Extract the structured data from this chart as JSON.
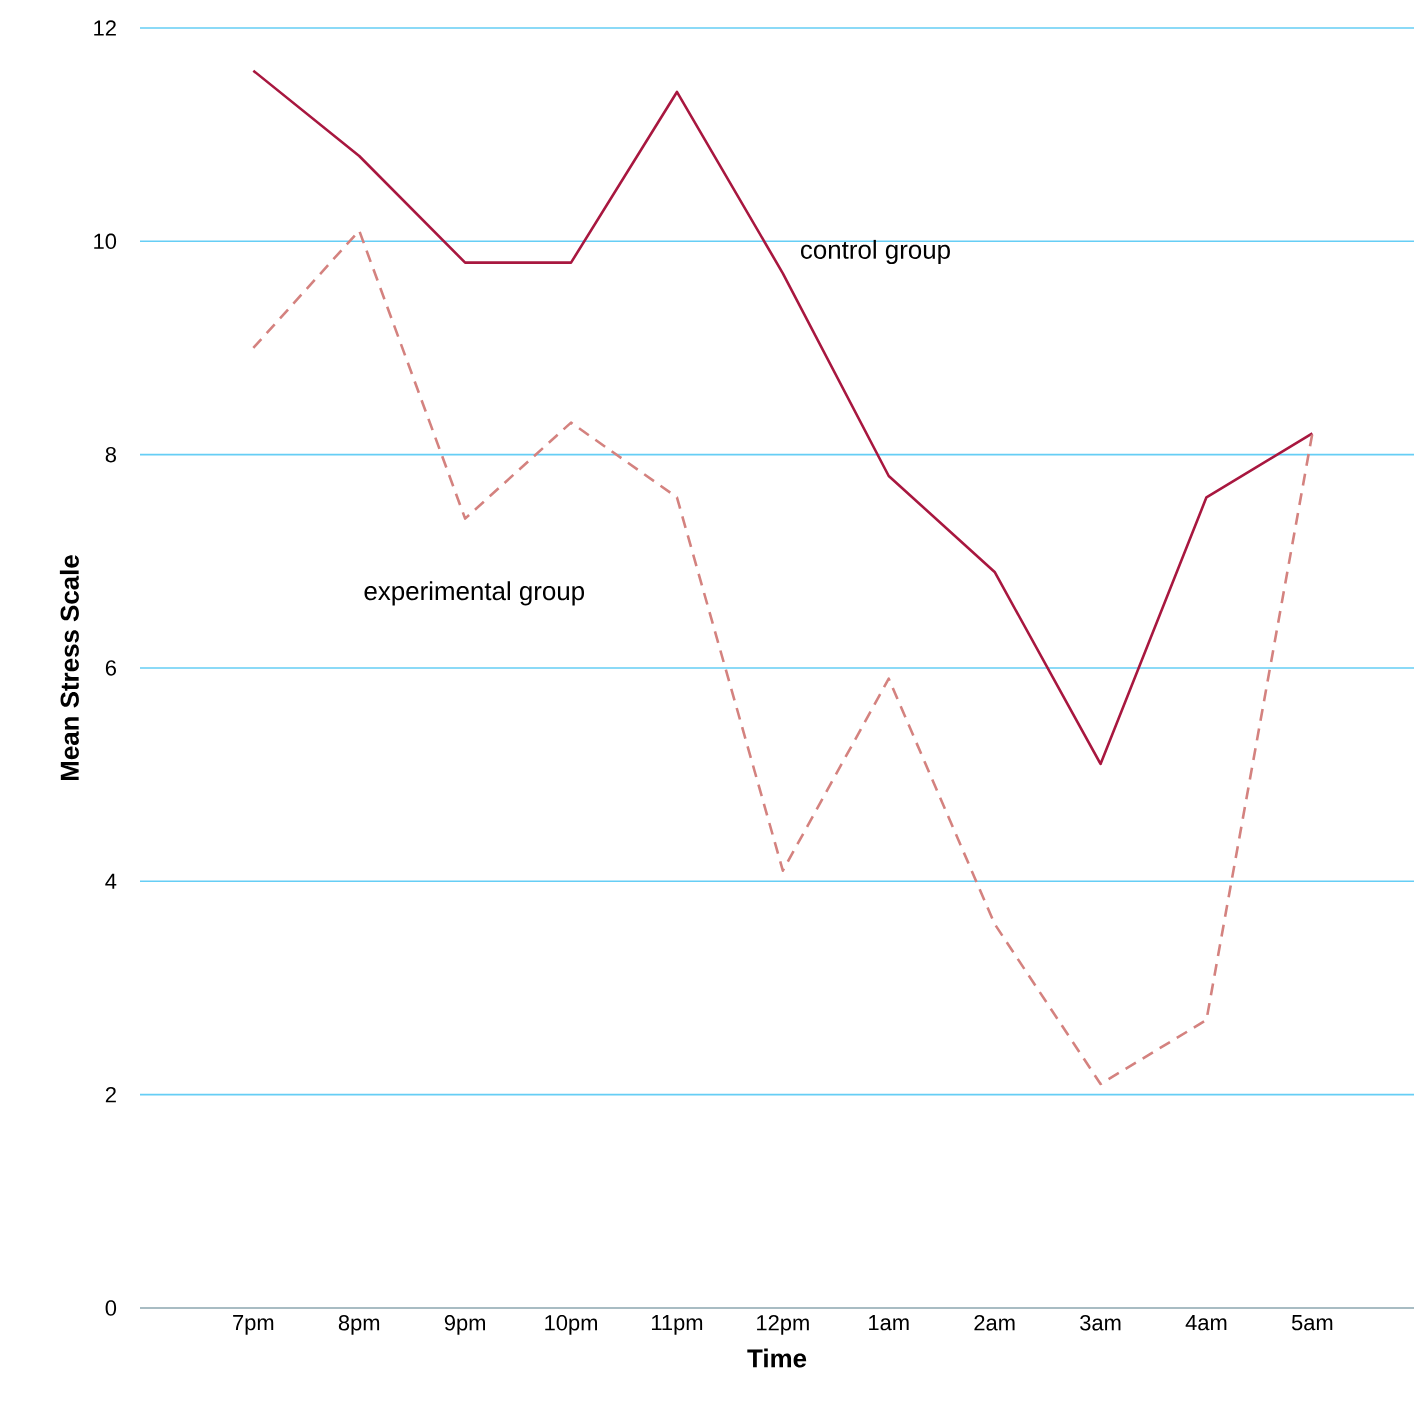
{
  "chart_data": {
    "type": "line",
    "xlabel": "Time",
    "ylabel": "Mean Stress Scale",
    "categories": [
      "7pm",
      "8pm",
      "9pm",
      "10pm",
      "11pm",
      "12pm",
      "1am",
      "2am",
      "3am",
      "4am",
      "5am"
    ],
    "series": [
      {
        "name": "control group",
        "color": "#a8173f",
        "line_style": "solid",
        "values": [
          11.6,
          10.8,
          9.8,
          9.8,
          11.4,
          9.7,
          7.8,
          6.9,
          5.1,
          7.6,
          8.2
        ]
      },
      {
        "name": "experimental group",
        "color": "#d4827f",
        "line_style": "dashed",
        "values": [
          9.0,
          10.1,
          7.4,
          8.3,
          7.6,
          4.1,
          5.9,
          3.6,
          2.1,
          2.7,
          8.2
        ]
      }
    ],
    "ylim": [
      0,
      12
    ],
    "yticks": [
      0,
      2,
      4,
      6,
      8,
      10,
      12
    ],
    "grid": "y",
    "marker": "none"
  }
}
